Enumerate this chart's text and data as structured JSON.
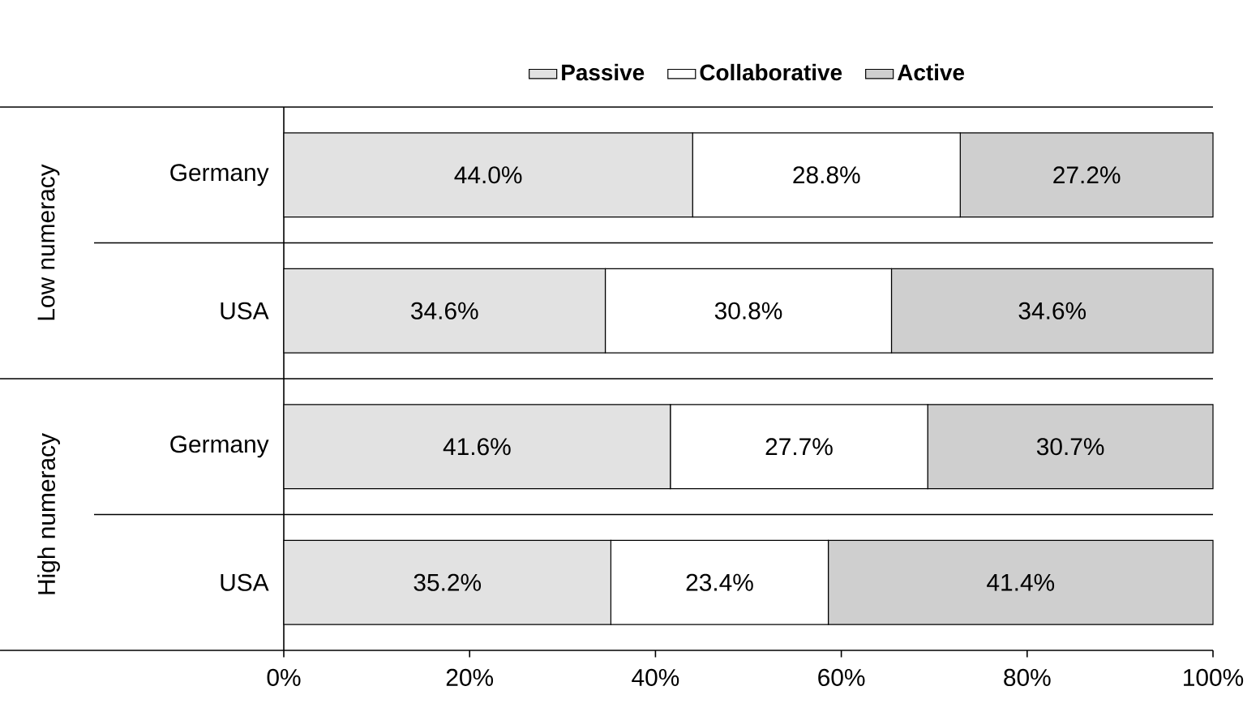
{
  "chart_data": {
    "type": "bar",
    "orientation": "horizontal",
    "stacked": true,
    "categories": [
      "Germany",
      "USA",
      "Germany",
      "USA"
    ],
    "series": [
      {
        "name": "Passive",
        "color": "#e2e2e2",
        "values": [
          44.0,
          34.6,
          41.6,
          35.2
        ],
        "value_labels": [
          "44.0%",
          "34.6%",
          "41.6%",
          "35.2%"
        ]
      },
      {
        "name": "Collaborative",
        "color": "#ffffff",
        "values": [
          28.8,
          30.8,
          27.7,
          23.4
        ],
        "value_labels": [
          "28.8%",
          "30.8%",
          "27.7%",
          "23.4%"
        ]
      },
      {
        "name": "Active",
        "color": "#cfcfcf",
        "values": [
          27.2,
          34.6,
          30.7,
          41.4
        ],
        "value_labels": [
          "27.2%",
          "34.6%",
          "30.7%",
          "41.4%"
        ]
      }
    ],
    "xlim": [
      0,
      100
    ],
    "xticks": [
      {
        "value": 0,
        "label": "0%"
      },
      {
        "value": 20,
        "label": "20%"
      },
      {
        "value": 40,
        "label": "40%"
      },
      {
        "value": 60,
        "label": "60%"
      },
      {
        "value": 80,
        "label": "80%"
      },
      {
        "value": 100,
        "label": "100%"
      }
    ],
    "annotations": [
      "Low numeracy",
      "High numeracy"
    ],
    "legend": "top"
  }
}
